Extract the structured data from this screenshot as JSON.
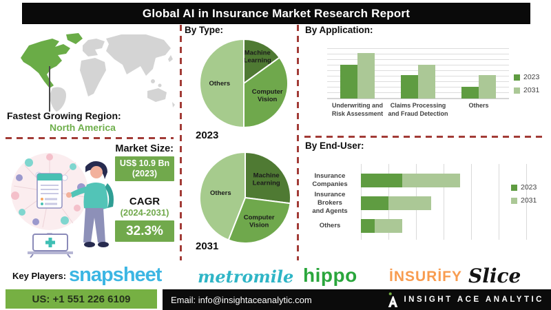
{
  "title": "Global AI in Insurance Market Research Report",
  "region": {
    "label": "Fastest Growing Region:",
    "value": "North America"
  },
  "market_size": {
    "label": "Market Size:",
    "value": "US$ 10.9 Bn",
    "year": "(2023)",
    "cagr_label": "CAGR",
    "cagr_period": "(2024-2031)",
    "cagr_value": "32.3%"
  },
  "sections": {
    "by_type": "By Type:",
    "by_application": "By Application:",
    "by_end_user": "By End-User:"
  },
  "colors": {
    "pie_dark_green": "#4F7A33",
    "pie_mid_green": "#6FA84C",
    "pie_light_green": "#A6CB8D",
    "series_2023": "#5F9C41",
    "series_2031": "#ABC896",
    "dash_red": "#A23B36",
    "footer_green": "#76B043",
    "map_highlight": "#6AAC47",
    "map_gray": "#D4D4D4"
  },
  "chart_data": [
    {
      "id": "pie2023",
      "type": "pie",
      "title": "By Type:",
      "year": "2023",
      "labels": [
        "Machine Learning",
        "Computer Vision",
        "Others"
      ],
      "values": [
        15,
        35,
        50
      ],
      "colors": [
        "#4F7A33",
        "#6FA84C",
        "#A6CB8D"
      ],
      "label_radius": [
        0.68,
        0.6,
        0.55
      ]
    },
    {
      "id": "pie2031",
      "type": "pie",
      "title": "By Type:",
      "year": "2031",
      "labels": [
        "Machine Learning",
        "Computer Vision",
        "Others"
      ],
      "values": [
        27,
        29,
        44
      ],
      "colors": [
        "#4F7A33",
        "#6FA84C",
        "#A6CB8D"
      ],
      "label_radius": [
        0.62,
        0.6,
        0.55
      ]
    },
    {
      "id": "application",
      "type": "bar",
      "title": "By Application:",
      "categories": [
        [
          "Underwriting and",
          "Risk Assessment"
        ],
        [
          "Claims Processing",
          "and Fraud Detection"
        ],
        [
          "Others"
        ]
      ],
      "series": [
        {
          "name": "2023",
          "color": "#5F9C41",
          "values": [
            67,
            46,
            23
          ]
        },
        {
          "name": "2031",
          "color": "#ABC896",
          "values": [
            90,
            67,
            46
          ]
        }
      ],
      "ylim": [
        0,
        100
      ],
      "grid": "horizontal",
      "legend_position": "right"
    },
    {
      "id": "enduser",
      "type": "stacked-hbar",
      "title": "By End-User:",
      "categories": [
        [
          "Insurance",
          "Companies"
        ],
        [
          "Insurance Brokers",
          "and Agents"
        ],
        [
          "Others"
        ]
      ],
      "series": [
        {
          "name": "2023",
          "color": "#5F9C41",
          "values": [
            30,
            20,
            10
          ]
        },
        {
          "name": "2031",
          "color": "#ABC896",
          "values": [
            42,
            31,
            20
          ]
        }
      ],
      "xlim": [
        0,
        120
      ],
      "grid": "vertical",
      "legend_position": "right"
    }
  ],
  "key_players": {
    "label": "Key Players:",
    "logos": [
      {
        "name": "snapsheet",
        "text": "snapsheet",
        "color": "#3CB6E3"
      },
      {
        "name": "metromile",
        "text": "metromile",
        "color": "#2FB5C6"
      },
      {
        "name": "hippo",
        "text": "hippo",
        "color": "#2AA63C"
      },
      {
        "name": "insurify",
        "text": "İNSURİFY",
        "color": "#F89C50"
      },
      {
        "name": "slice",
        "text": "Slice",
        "color": "#141414"
      }
    ]
  },
  "footer": {
    "phone": "US: +1 551 226 6109",
    "email": "Email: info@insightaceanalytic.com",
    "brand": "INSIGHT ACE ANALYTIC"
  }
}
